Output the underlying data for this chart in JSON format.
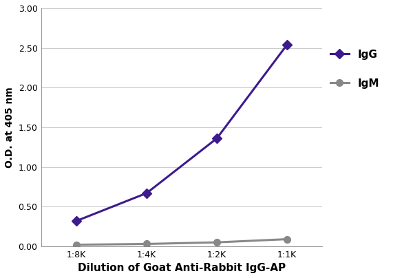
{
  "x_labels": [
    "1:8K",
    "1:4K",
    "1:2K",
    "1:1K"
  ],
  "x_values": [
    1,
    2,
    3,
    4
  ],
  "IgG_values": [
    0.32,
    0.67,
    1.36,
    2.54
  ],
  "IgM_values": [
    0.02,
    0.03,
    0.05,
    0.09
  ],
  "IgG_color": "#3d1a8e",
  "IgM_color": "#888888",
  "IgG_label": "IgG",
  "IgM_label": "IgM",
  "xlabel": "Dilution of Goat Anti-Rabbit IgG-AP",
  "ylabel": "O.D. at 405 nm",
  "ylim": [
    0.0,
    3.0
  ],
  "yticks": [
    0.0,
    0.5,
    1.0,
    1.5,
    2.0,
    2.5,
    3.0
  ],
  "ytick_labels": [
    "0.00",
    "0.50",
    "1.00",
    "1.50",
    "2.00",
    "2.50",
    "3.00"
  ],
  "background_color": "#ffffff",
  "grid_color": "#cccccc",
  "IgG_marker": "D",
  "IgM_marker": "o",
  "line_width": 2.2,
  "IgG_marker_size": 7,
  "IgM_marker_size": 7,
  "xlabel_fontsize": 11,
  "ylabel_fontsize": 10,
  "tick_fontsize": 9,
  "legend_fontsize": 11
}
